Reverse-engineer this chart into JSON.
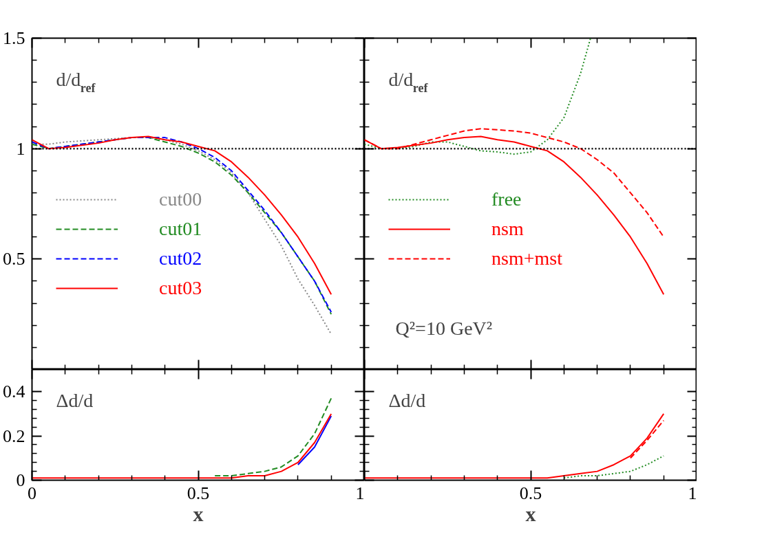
{
  "chart_data": [
    {
      "type": "line",
      "ylabel": "d/d$_{ref}$",
      "x": [
        0,
        0.05,
        0.1,
        0.15,
        0.2,
        0.25,
        0.3,
        0.35,
        0.4,
        0.45,
        0.5,
        0.55,
        0.6,
        0.65,
        0.7,
        0.75,
        0.8,
        0.85,
        0.9
      ],
      "xlim": [
        0,
        1
      ],
      "ylim": [
        0,
        1.5
      ],
      "xticks": [
        0,
        0.5,
        1
      ],
      "yticks": [
        {
          "value": 0,
          "label": null
        },
        0.5,
        1,
        1.5
      ],
      "tick_labels": "y",
      "legend": "left",
      "ref_lines": [
        {
          "axis": "y",
          "value": 1,
          "color": "#000000",
          "line_style": "dotted"
        }
      ],
      "series": [
        {
          "name": "cut00",
          "color": "#888888",
          "line_style": "dotted",
          "values": [
            1.02,
            1.02,
            1.03,
            1.035,
            1.04,
            1.045,
            1.05,
            1.05,
            1.04,
            1.02,
            0.99,
            0.95,
            0.89,
            0.8,
            0.68,
            0.56,
            0.41,
            0.29,
            0.16
          ]
        },
        {
          "name": "cut01",
          "color": "#228b22",
          "line_style": "dashed",
          "values": [
            1.02,
            1.0,
            1.01,
            1.02,
            1.03,
            1.04,
            1.05,
            1.05,
            1.03,
            1.01,
            0.98,
            0.94,
            0.88,
            0.8,
            0.71,
            0.62,
            0.51,
            0.4,
            0.25
          ]
        },
        {
          "name": "cut02",
          "color": "#0000ff",
          "line_style": "dashed",
          "values": [
            1.03,
            1.0,
            1.01,
            1.02,
            1.03,
            1.04,
            1.05,
            1.05,
            1.05,
            1.03,
            1.0,
            0.96,
            0.9,
            0.81,
            0.72,
            0.62,
            0.51,
            0.4,
            0.26
          ]
        },
        {
          "name": "cut03",
          "color": "#ff0000",
          "line_style": "solid",
          "values": [
            1.04,
            1.0,
            1.005,
            1.015,
            1.025,
            1.04,
            1.05,
            1.055,
            1.04,
            1.03,
            1.01,
            0.99,
            0.94,
            0.87,
            0.79,
            0.7,
            0.6,
            0.48,
            0.34
          ]
        }
      ]
    },
    {
      "type": "line",
      "ylabel": "d/d$_{ref}$",
      "x": [
        0,
        0.05,
        0.1,
        0.15,
        0.2,
        0.25,
        0.3,
        0.35,
        0.4,
        0.45,
        0.5,
        0.55,
        0.6,
        0.65,
        0.7,
        0.75,
        0.8,
        0.85,
        0.9
      ],
      "xlim": [
        0,
        1
      ],
      "ylim": [
        0,
        1.5
      ],
      "xticks": [
        {
          "value": 0,
          "label": null
        },
        0.5,
        1
      ],
      "yticks": [
        0,
        0.5,
        1,
        1.5
      ],
      "tick_labels": false,
      "legend": "left",
      "annotations": [
        "Q²=10 GeV²"
      ],
      "ref_lines": [
        {
          "axis": "y",
          "value": 1,
          "color": "#000000",
          "line_style": "dotted"
        }
      ],
      "series": [
        {
          "name": "free",
          "color": "#228b22",
          "line_style": "dotted",
          "x": [
            0,
            0.05,
            0.1,
            0.15,
            0.2,
            0.25,
            0.3,
            0.35,
            0.4,
            0.45,
            0.5,
            0.55,
            0.6,
            0.65,
            0.68
          ],
          "values": [
            1.02,
            1.0,
            1.0,
            1.01,
            1.03,
            1.03,
            1.01,
            0.99,
            0.985,
            0.975,
            0.985,
            1.04,
            1.14,
            1.34,
            1.5
          ]
        },
        {
          "name": "nsm",
          "color": "#ff0000",
          "line_style": "solid",
          "values": [
            1.04,
            1.0,
            1.005,
            1.015,
            1.025,
            1.04,
            1.05,
            1.055,
            1.04,
            1.03,
            1.01,
            0.99,
            0.94,
            0.87,
            0.79,
            0.7,
            0.6,
            0.48,
            0.34
          ]
        },
        {
          "name": "nsm+mst",
          "color": "#ff0000",
          "line_style": "dashed",
          "values": [
            1.04,
            1.0,
            1.0,
            1.02,
            1.04,
            1.06,
            1.08,
            1.09,
            1.085,
            1.08,
            1.07,
            1.05,
            1.03,
            1.0,
            0.95,
            0.89,
            0.8,
            0.71,
            0.6
          ]
        }
      ]
    },
    {
      "type": "line",
      "ylabel": "Δd/d",
      "xlabel": "x",
      "x": [
        0,
        0.05,
        0.1,
        0.15,
        0.2,
        0.25,
        0.3,
        0.35,
        0.4,
        0.45,
        0.5,
        0.55,
        0.6,
        0.65,
        0.7,
        0.75,
        0.8,
        0.85,
        0.9
      ],
      "xlim": [
        0,
        1
      ],
      "ylim": [
        0,
        0.5
      ],
      "xticks": [
        0,
        0.5,
        1
      ],
      "yticks": [
        0,
        0.2,
        0.4
      ],
      "series": [
        {
          "color": "#228b22",
          "line_style": "dashed",
          "values": [
            null,
            null,
            null,
            null,
            null,
            null,
            null,
            null,
            null,
            null,
            null,
            0.02,
            0.02,
            0.03,
            0.04,
            0.06,
            0.11,
            0.21,
            0.37
          ]
        },
        {
          "color": "#0000ff",
          "line_style": "solid",
          "values": [
            null,
            null,
            null,
            null,
            null,
            null,
            null,
            null,
            null,
            null,
            null,
            null,
            null,
            null,
            null,
            null,
            0.07,
            0.15,
            0.29
          ]
        },
        {
          "color": "#ff0000",
          "line_style": "solid",
          "values": [
            0.01,
            0.01,
            0.01,
            0.01,
            0.01,
            0.01,
            0.01,
            0.01,
            0.01,
            0.01,
            0.01,
            0.01,
            0.01,
            0.02,
            0.02,
            0.04,
            0.08,
            0.17,
            0.3
          ]
        }
      ]
    },
    {
      "type": "line",
      "ylabel": "Δd/d",
      "xlabel": "x",
      "x": [
        0,
        0.05,
        0.1,
        0.15,
        0.2,
        0.25,
        0.3,
        0.35,
        0.4,
        0.45,
        0.5,
        0.55,
        0.6,
        0.65,
        0.7,
        0.75,
        0.8,
        0.85,
        0.9
      ],
      "xlim": [
        0,
        1
      ],
      "ylim": [
        0,
        0.5
      ],
      "xticks": [
        {
          "value": 0,
          "label": null
        },
        0.5,
        1
      ],
      "yticks": [
        0,
        0.2,
        0.4
      ],
      "tick_labels": "x",
      "series": [
        {
          "color": "#228b22",
          "line_style": "dotted",
          "values": [
            null,
            null,
            null,
            null,
            null,
            null,
            null,
            null,
            null,
            null,
            null,
            null,
            0.01,
            0.02,
            0.02,
            0.03,
            0.04,
            0.07,
            0.11
          ]
        },
        {
          "color": "#ff0000",
          "line_style": "solid",
          "values": [
            0.01,
            0.01,
            0.01,
            0.01,
            0.01,
            0.01,
            0.01,
            0.01,
            0.01,
            0.01,
            0.01,
            0.01,
            0.02,
            0.03,
            0.04,
            0.07,
            0.11,
            0.19,
            0.3
          ]
        },
        {
          "color": "#ff0000",
          "line_style": "dashed",
          "values": [
            null,
            null,
            null,
            null,
            null,
            null,
            null,
            null,
            null,
            null,
            null,
            null,
            null,
            null,
            null,
            null,
            0.1,
            0.18,
            0.27
          ]
        }
      ]
    }
  ]
}
